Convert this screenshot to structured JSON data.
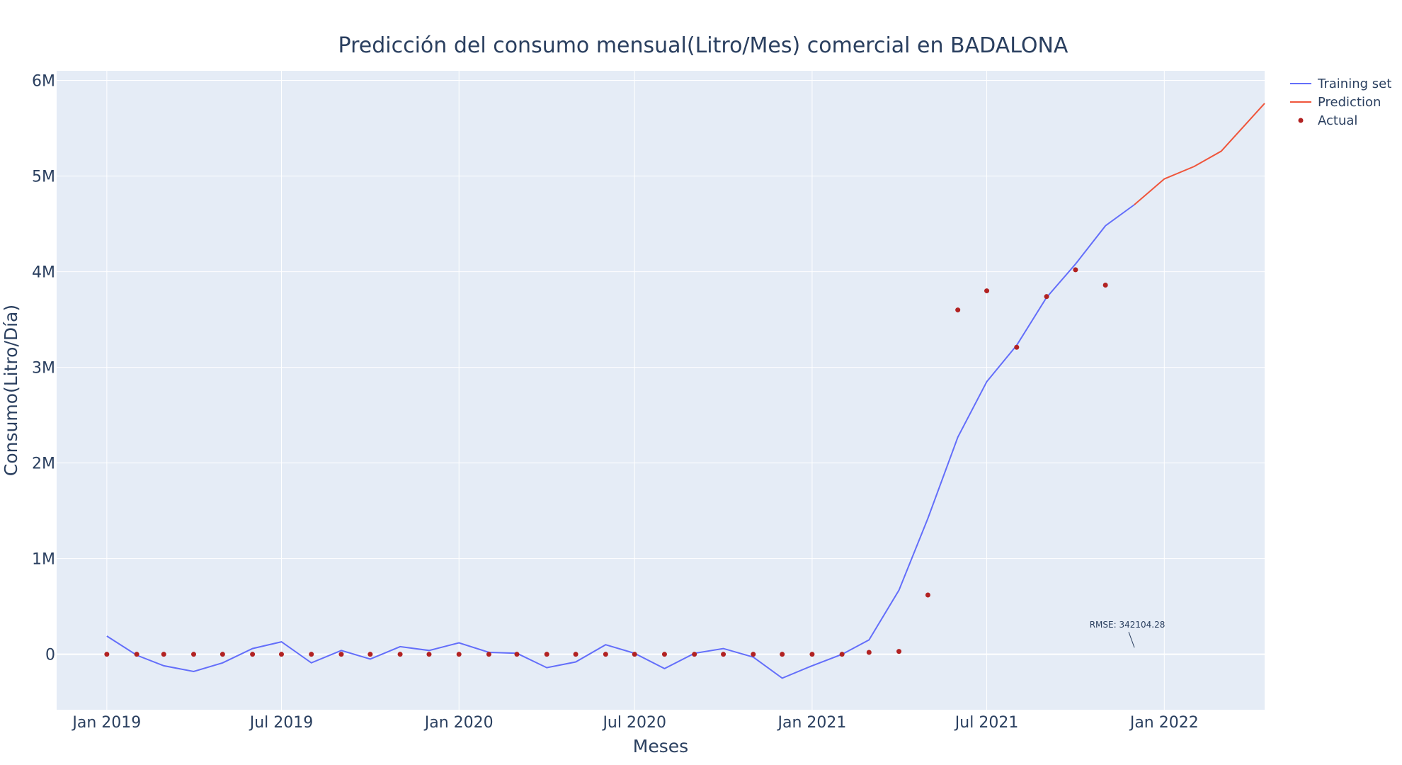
{
  "chart_data": {
    "type": "line",
    "title": "Predicción del consumo mensual(Litro/Mes) comercial en BADALONA",
    "xlabel": "Meses",
    "ylabel": "Consumo(Litro/Día)",
    "ylim": [
      -580000,
      6100000
    ],
    "xlim": [
      "2018-11-10",
      "2022-04-15"
    ],
    "x_ticks": [
      {
        "date": "2019-01-01",
        "label": "Jan 2019"
      },
      {
        "date": "2019-07-01",
        "label": "Jul 2019"
      },
      {
        "date": "2020-01-01",
        "label": "Jan 2020"
      },
      {
        "date": "2020-07-01",
        "label": "Jul 2020"
      },
      {
        "date": "2021-01-01",
        "label": "Jan 2021"
      },
      {
        "date": "2021-07-01",
        "label": "Jul 2021"
      },
      {
        "date": "2022-01-01",
        "label": "Jan 2022"
      }
    ],
    "y_ticks": [
      {
        "value": 0,
        "label": "0"
      },
      {
        "value": 1000000,
        "label": "1M"
      },
      {
        "value": 2000000,
        "label": "2M"
      },
      {
        "value": 3000000,
        "label": "3M"
      },
      {
        "value": 4000000,
        "label": "4M"
      },
      {
        "value": 5000000,
        "label": "5M"
      },
      {
        "value": 6000000,
        "label": "6M"
      }
    ],
    "grid": true,
    "legend_position": "top-right",
    "colors": {
      "plot_bg": "#E5ECF6",
      "grid": "#ffffff",
      "training": "#636EFA",
      "prediction": "#EF553B",
      "actual": "#B22222"
    },
    "series": [
      {
        "name": "Training set",
        "type": "line",
        "x": [
          "2019-01-01",
          "2019-02-01",
          "2019-03-01",
          "2019-04-01",
          "2019-05-01",
          "2019-06-01",
          "2019-07-01",
          "2019-08-01",
          "2019-09-01",
          "2019-10-01",
          "2019-11-01",
          "2019-12-01",
          "2020-01-01",
          "2020-02-01",
          "2020-03-01",
          "2020-04-01",
          "2020-05-01",
          "2020-06-01",
          "2020-07-01",
          "2020-08-01",
          "2020-09-01",
          "2020-10-01",
          "2020-11-01",
          "2020-12-01",
          "2021-01-01",
          "2021-02-01",
          "2021-03-01",
          "2021-04-01",
          "2021-05-01",
          "2021-06-01",
          "2021-07-01",
          "2021-08-01",
          "2021-09-01",
          "2021-10-01",
          "2021-11-01",
          "2021-12-01"
        ],
        "values": [
          190000,
          -10000,
          -120000,
          -180000,
          -90000,
          60000,
          130000,
          -90000,
          40000,
          -50000,
          80000,
          40000,
          120000,
          20000,
          10000,
          -140000,
          -80000,
          100000,
          10000,
          -150000,
          10000,
          60000,
          -30000,
          -250000,
          -120000,
          0,
          150000,
          670000,
          1420000,
          2270000,
          2850000,
          3230000,
          3730000,
          4080000,
          4480000,
          4700000
        ]
      },
      {
        "name": "Prediction",
        "type": "line",
        "x": [
          "2021-12-01",
          "2022-01-01",
          "2022-02-01",
          "2022-03-01",
          "2022-04-15"
        ],
        "values": [
          4700000,
          4970000,
          5100000,
          5260000,
          5760000
        ]
      },
      {
        "name": "Actual",
        "type": "scatter",
        "x": [
          "2019-01-01",
          "2019-02-01",
          "2019-03-01",
          "2019-04-01",
          "2019-05-01",
          "2019-06-01",
          "2019-07-01",
          "2019-08-01",
          "2019-09-01",
          "2019-10-01",
          "2019-11-01",
          "2019-12-01",
          "2020-01-01",
          "2020-02-01",
          "2020-03-01",
          "2020-04-01",
          "2020-05-01",
          "2020-06-01",
          "2020-07-01",
          "2020-08-01",
          "2020-09-01",
          "2020-10-01",
          "2020-11-01",
          "2020-12-01",
          "2021-01-01",
          "2021-02-01",
          "2021-03-01",
          "2021-04-01",
          "2021-05-01",
          "2021-06-01",
          "2021-07-01",
          "2021-08-01",
          "2021-09-01",
          "2021-10-01",
          "2021-11-01"
        ],
        "values": [
          0,
          0,
          0,
          0,
          0,
          0,
          0,
          0,
          0,
          0,
          0,
          0,
          0,
          0,
          0,
          0,
          0,
          0,
          0,
          0,
          0,
          0,
          0,
          0,
          0,
          0,
          20000,
          30000,
          620000,
          3600000,
          3800000,
          3210000,
          3740000,
          4020000,
          3860000
        ]
      }
    ],
    "annotations": [
      {
        "text": "RMSE: 342104.28",
        "x": "2021-12-01",
        "y": 70000
      }
    ]
  }
}
